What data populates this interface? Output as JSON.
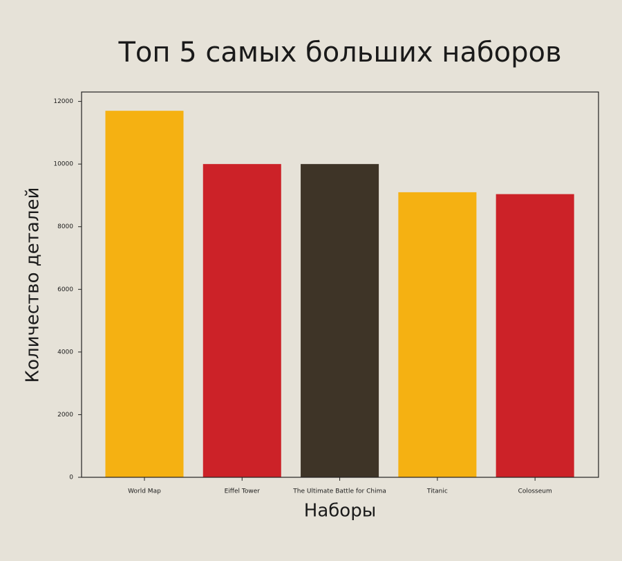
{
  "chart_data": {
    "type": "bar",
    "title": "Топ 5 самых больших наборов",
    "x_label": "Наборы",
    "y_label": "Количество деталей",
    "categories": [
      "World Map",
      "Eiffel Tower",
      "The Ultimate Battle for Chima",
      "Titanic",
      "Colosseum"
    ],
    "values": [
      11700,
      10000,
      10000,
      9100,
      9040
    ],
    "colors": [
      "#f5b112",
      "#cc2228",
      "#3e3427",
      "#f5b112",
      "#cc2228"
    ],
    "ylim": [
      0,
      12300
    ],
    "yticks": [
      0,
      2000,
      4000,
      6000,
      8000,
      10000,
      12000
    ],
    "grid": false
  }
}
